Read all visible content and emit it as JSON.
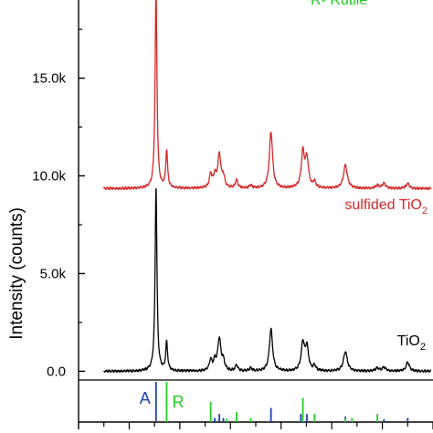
{
  "chart_data": {
    "type": "line",
    "title": "",
    "xlabel": "",
    "ylabel": "Intensity (counts)",
    "ylim": [
      -2600,
      19000
    ],
    "xlim": [
      10,
      80
    ],
    "grid": false,
    "y_ticks": [
      {
        "value": 0,
        "label": "0.0"
      },
      {
        "value": 5000,
        "label": "5.0k"
      },
      {
        "value": 10000,
        "label": "10.0k"
      },
      {
        "value": 15000,
        "label": "15.0k"
      }
    ],
    "series": [
      {
        "name": "sulfided TiO",
        "name_subscript": "2",
        "color": "#d62728",
        "baseline": 9350,
        "peaks": [
          {
            "x": 25.3,
            "height": 10100,
            "width": 0.22
          },
          {
            "x": 27.4,
            "height": 1900,
            "width": 0.22
          },
          {
            "x": 36.1,
            "height": 700,
            "width": 0.3
          },
          {
            "x": 36.9,
            "height": 600,
            "width": 0.3
          },
          {
            "x": 37.8,
            "height": 1700,
            "width": 0.38
          },
          {
            "x": 38.6,
            "height": 500,
            "width": 0.3
          },
          {
            "x": 41.2,
            "height": 400,
            "width": 0.3
          },
          {
            "x": 44.0,
            "height": 150,
            "width": 0.3
          },
          {
            "x": 48.0,
            "height": 2900,
            "width": 0.38
          },
          {
            "x": 54.3,
            "height": 1800,
            "width": 0.38
          },
          {
            "x": 55.1,
            "height": 1450,
            "width": 0.38
          },
          {
            "x": 56.6,
            "height": 300,
            "width": 0.3
          },
          {
            "x": 62.7,
            "height": 1200,
            "width": 0.45
          },
          {
            "x": 69.0,
            "height": 150,
            "width": 0.4
          },
          {
            "x": 70.3,
            "height": 250,
            "width": 0.4
          },
          {
            "x": 75.0,
            "height": 250,
            "width": 0.4
          }
        ]
      },
      {
        "name": "TiO",
        "name_subscript": "2",
        "color": "#000000",
        "baseline": 0,
        "peaks": [
          {
            "x": 25.3,
            "height": 9400,
            "width": 0.22
          },
          {
            "x": 27.4,
            "height": 1450,
            "width": 0.22
          },
          {
            "x": 36.1,
            "height": 550,
            "width": 0.3
          },
          {
            "x": 36.9,
            "height": 450,
            "width": 0.3
          },
          {
            "x": 37.8,
            "height": 1650,
            "width": 0.38
          },
          {
            "x": 38.6,
            "height": 450,
            "width": 0.3
          },
          {
            "x": 41.2,
            "height": 300,
            "width": 0.3
          },
          {
            "x": 44.0,
            "height": 150,
            "width": 0.3
          },
          {
            "x": 48.0,
            "height": 2150,
            "width": 0.38
          },
          {
            "x": 54.3,
            "height": 1400,
            "width": 0.38
          },
          {
            "x": 55.1,
            "height": 1200,
            "width": 0.38
          },
          {
            "x": 56.6,
            "height": 250,
            "width": 0.3
          },
          {
            "x": 62.7,
            "height": 1000,
            "width": 0.45
          },
          {
            "x": 69.0,
            "height": 150,
            "width": 0.4
          },
          {
            "x": 70.3,
            "height": 200,
            "width": 0.4
          },
          {
            "x": 75.0,
            "height": 450,
            "width": 0.4
          }
        ]
      }
    ],
    "reference_patterns": [
      {
        "label": "A",
        "color": "#1f3fb4",
        "lines": [
          {
            "x": 25.3,
            "intensity": 100
          },
          {
            "x": 36.9,
            "intensity": 10
          },
          {
            "x": 37.8,
            "intensity": 20
          },
          {
            "x": 38.6,
            "intensity": 10
          },
          {
            "x": 48.0,
            "intensity": 35
          },
          {
            "x": 53.9,
            "intensity": 20
          },
          {
            "x": 55.1,
            "intensity": 20
          },
          {
            "x": 62.7,
            "intensity": 14
          },
          {
            "x": 70.3,
            "intensity": 7
          },
          {
            "x": 75.0,
            "intensity": 10
          }
        ]
      },
      {
        "label": "R",
        "color": "#22cc22",
        "lines": [
          {
            "x": 27.4,
            "intensity": 100
          },
          {
            "x": 36.1,
            "intensity": 50
          },
          {
            "x": 39.2,
            "intensity": 8
          },
          {
            "x": 41.2,
            "intensity": 25
          },
          {
            "x": 44.0,
            "intensity": 10
          },
          {
            "x": 54.3,
            "intensity": 60
          },
          {
            "x": 56.6,
            "intensity": 20
          },
          {
            "x": 62.7,
            "intensity": 10
          },
          {
            "x": 64.0,
            "intensity": 10
          },
          {
            "x": 69.0,
            "intensity": 20
          }
        ]
      }
    ],
    "annotations": [
      {
        "text": "R- Rutile",
        "color": "#22cc22",
        "partially_visible": true
      }
    ]
  }
}
